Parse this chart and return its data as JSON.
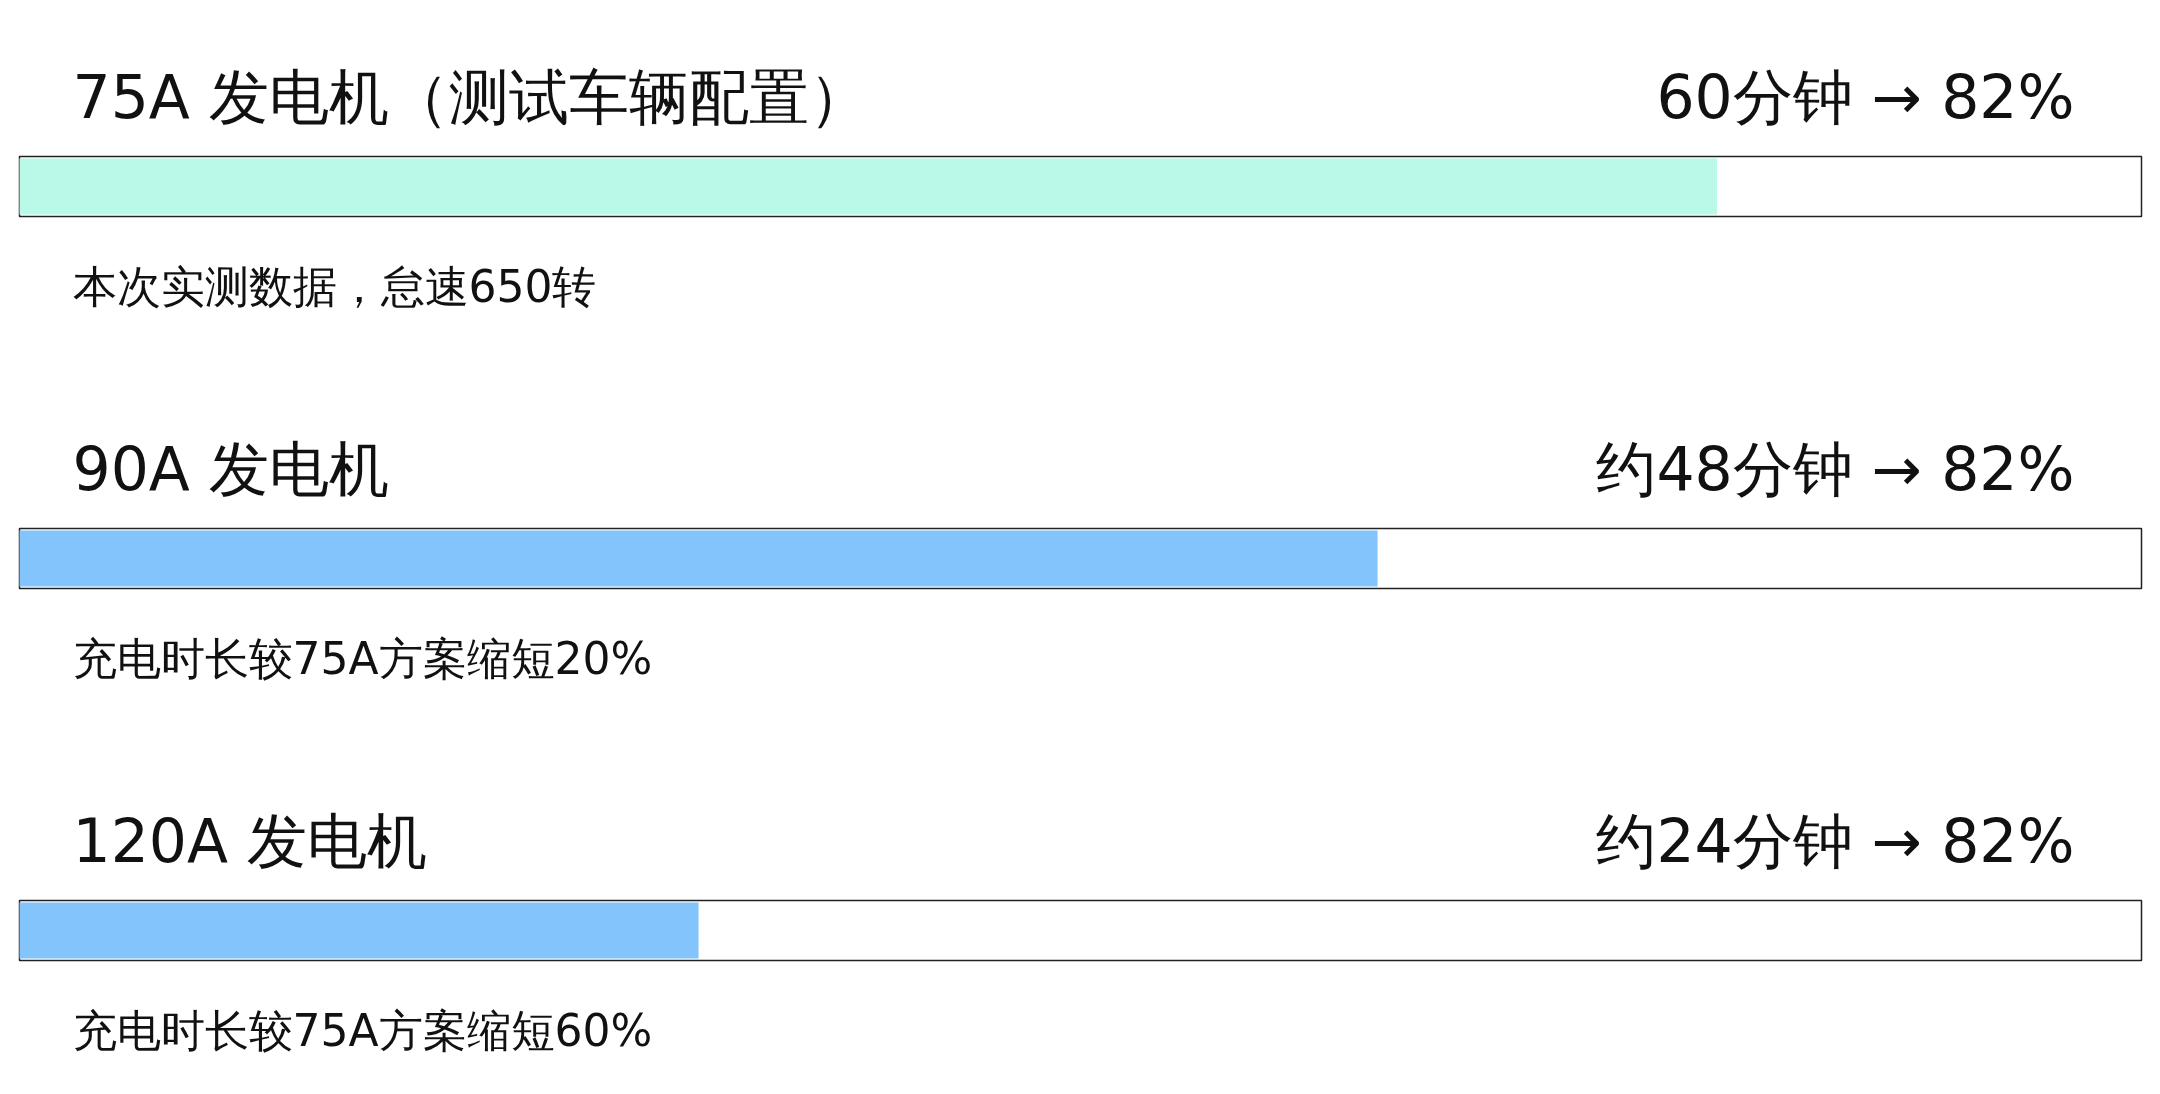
{
  "chart_data": {
    "type": "bar",
    "orientation": "horizontal",
    "categories": [
      "75A 发电机（测试车辆配置）",
      "90A 发电机",
      "120A 发电机"
    ],
    "values": [
      60,
      48,
      24
    ],
    "colors": [
      "#baf9e8",
      "#84c4fc",
      "#84c4fc"
    ],
    "value_labels": [
      "60分钟 → 82%",
      "约48分钟 → 82%",
      "约24分钟 → 82%"
    ],
    "annotations": [
      "本次实测数据，怠速650转",
      "充电时长较75A方案缩短20%",
      "充电时长较75A方案缩短60%"
    ],
    "grid": false
  }
}
